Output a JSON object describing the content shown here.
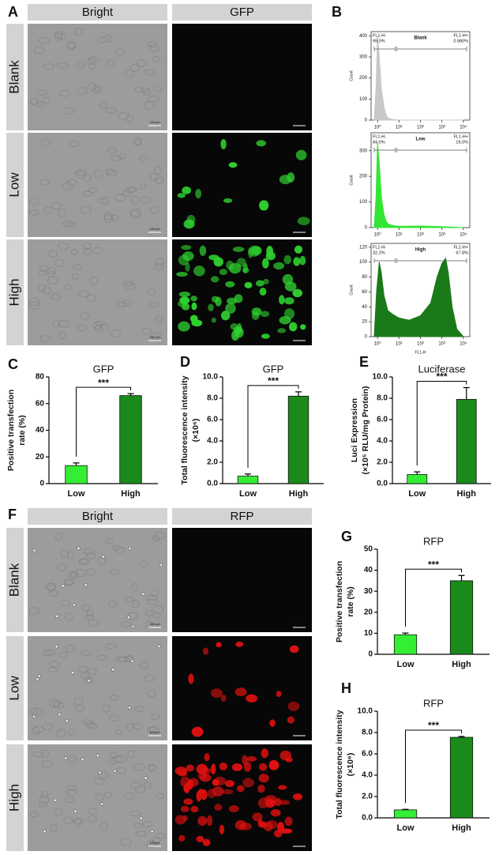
{
  "micrographs": [
    {
      "label": "A",
      "columns": [
        "Bright",
        "GFP"
      ],
      "rows": [
        "Blank",
        "Low",
        "High"
      ],
      "scale_bar": "100 μm"
    },
    {
      "label": "F",
      "columns": [
        "Bright",
        "RFP"
      ],
      "rows": [
        "Blank",
        "Low",
        "High"
      ],
      "scale_bar": "100 μm"
    }
  ],
  "chart_data": [
    {
      "type": "area",
      "panel": "B",
      "sample": "Blank",
      "color": "#c8c8c8",
      "log_x": true,
      "gate_minus": [
        "FL1-H-",
        "99.0%"
      ],
      "gate_plus": [
        "FL1-H+",
        "0.980%"
      ],
      "ylabel": "Count",
      "x": [
        0.7,
        0.85,
        1,
        1.2,
        1.5,
        2,
        2.5,
        3,
        5,
        10,
        100,
        1000,
        10000
      ],
      "values": [
        0,
        150,
        400,
        300,
        150,
        60,
        25,
        10,
        3,
        0,
        0,
        0,
        0
      ],
      "xlim": [
        0.5,
        20000
      ],
      "ylim": [
        0,
        420
      ],
      "yticks": [
        0,
        100,
        200,
        300,
        400
      ],
      "xticks": [
        {
          "value": 1,
          "label": "10⁰"
        },
        {
          "value": 10,
          "label": "10¹"
        },
        {
          "value": 100,
          "label": "10²"
        },
        {
          "value": 1000,
          "label": "10³"
        },
        {
          "value": 10000,
          "label": "10⁴"
        }
      ]
    },
    {
      "type": "area",
      "sample": "Low",
      "color": "#33e633",
      "log_x": true,
      "gate_minus": [
        "FL1-H-",
        "84.0%"
      ],
      "gate_plus": [
        "FL1-H+",
        "16.0%"
      ],
      "ylabel": "Count",
      "x": [
        0.7,
        0.85,
        1,
        1.2,
        1.5,
        2,
        2.5,
        3,
        5,
        10,
        100,
        1000,
        10000
      ],
      "values": [
        0,
        120,
        330,
        250,
        120,
        50,
        25,
        15,
        8,
        5,
        6,
        4,
        0
      ],
      "xlim": [
        0.5,
        20000
      ],
      "ylim": [
        0,
        370
      ],
      "yticks": [
        0,
        100,
        200,
        300
      ],
      "xticks": [
        {
          "value": 1,
          "label": "10⁰"
        },
        {
          "value": 10,
          "label": "10¹"
        },
        {
          "value": 100,
          "label": "10²"
        },
        {
          "value": 1000,
          "label": "10³"
        },
        {
          "value": 10000,
          "label": "10⁴"
        }
      ]
    },
    {
      "type": "area",
      "sample": "High",
      "color": "#1a7a1a",
      "log_x": true,
      "gate_minus": [
        "FL1-H-",
        "32.2%"
      ],
      "gate_plus": [
        "FL1-H+",
        "67.8%"
      ],
      "ylabel": "Count",
      "xlabel": "FL1-H",
      "x": [
        0.7,
        0.9,
        1.2,
        1.5,
        2,
        3,
        5,
        10,
        30,
        100,
        300,
        600,
        1000,
        1500,
        2000,
        3000,
        5000,
        10000
      ],
      "values": [
        0,
        60,
        100,
        85,
        55,
        35,
        30,
        25,
        22,
        28,
        45,
        80,
        98,
        105,
        85,
        40,
        10,
        0
      ],
      "xlim": [
        0.5,
        20000
      ],
      "ylim": [
        0,
        125
      ],
      "yticks": [
        0,
        20,
        40,
        60,
        80,
        100,
        120
      ],
      "xticks": [
        {
          "value": 1,
          "label": "10⁰"
        },
        {
          "value": 10,
          "label": "10¹"
        },
        {
          "value": 100,
          "label": "10²"
        },
        {
          "value": 1000,
          "label": "10³"
        },
        {
          "value": 10000,
          "label": "10⁴"
        }
      ]
    },
    {
      "type": "bar",
      "panel": "C",
      "title": "GFP",
      "ylabel": [
        "Positive transfection",
        "rate (%)"
      ],
      "categories": [
        "Low",
        "High"
      ],
      "values": [
        13.5,
        66
      ],
      "errors": [
        2,
        1.5
      ],
      "colors": [
        "#33ee33",
        "#1a8a1a"
      ],
      "significance": "***",
      "ylim": [
        0,
        80
      ],
      "yticks": [
        0,
        20,
        40,
        60,
        80
      ]
    },
    {
      "type": "bar",
      "panel": "D",
      "title": "GFP",
      "ylabel": [
        "Total fluorescence intensity",
        "(×10⁶)"
      ],
      "categories": [
        "Low",
        "High"
      ],
      "values": [
        0.7,
        8.2
      ],
      "errors": [
        0.2,
        0.4
      ],
      "colors": [
        "#33ee33",
        "#1a8a1a"
      ],
      "significance": "***",
      "ylim": [
        0,
        10
      ],
      "yticks": [
        {
          "value": 0,
          "label": "0.0"
        },
        {
          "value": 2,
          "label": "2.0"
        },
        {
          "value": 4,
          "label": "4.0"
        },
        {
          "value": 6,
          "label": "6.0"
        },
        {
          "value": 8,
          "label": "8.0"
        },
        {
          "value": 10,
          "label": "10.0"
        }
      ]
    },
    {
      "type": "bar",
      "panel": "E",
      "title": "Luciferase",
      "ylabel": [
        "Luci Expression",
        "(×10⁵ RLU/mg Protein)"
      ],
      "categories": [
        "Low",
        "High"
      ],
      "values": [
        0.85,
        7.9
      ],
      "errors": [
        0.25,
        1.1
      ],
      "colors": [
        "#33ee33",
        "#1a8a1a"
      ],
      "significance": "***",
      "ylim": [
        0,
        10
      ],
      "yticks": [
        {
          "value": 0,
          "label": "0.0"
        },
        {
          "value": 2,
          "label": "2.0"
        },
        {
          "value": 4,
          "label": "4.0"
        },
        {
          "value": 6,
          "label": "6.0"
        },
        {
          "value": 8,
          "label": "8.0"
        },
        {
          "value": 10,
          "label": "10.0"
        }
      ]
    },
    {
      "type": "bar",
      "panel": "G",
      "title": "RFP",
      "ylabel": [
        "Positive transfection",
        "rate (%)"
      ],
      "categories": [
        "Low",
        "High"
      ],
      "values": [
        9.3,
        35
      ],
      "errors": [
        0.8,
        2.5
      ],
      "colors": [
        "#33ee33",
        "#1a8a1a"
      ],
      "significance": "***",
      "ylim": [
        0,
        50
      ],
      "yticks": [
        0,
        10,
        20,
        30,
        40,
        50
      ]
    },
    {
      "type": "bar",
      "panel": "H",
      "title": "RFP",
      "ylabel": [
        "Total fluorescence intensity",
        "(×10⁶)"
      ],
      "categories": [
        "Low",
        "High"
      ],
      "values": [
        0.75,
        7.55
      ],
      "errors": [
        0.05,
        0.08
      ],
      "colors": [
        "#33ee33",
        "#1a8a1a"
      ],
      "significance": "***",
      "ylim": [
        0,
        10
      ],
      "yticks": [
        {
          "value": 0,
          "label": "0.0"
        },
        {
          "value": 2,
          "label": "2.0"
        },
        {
          "value": 4,
          "label": "4.0"
        },
        {
          "value": 6,
          "label": "6.0"
        },
        {
          "value": 8,
          "label": "8.0"
        },
        {
          "value": 10,
          "label": "10.0"
        }
      ]
    }
  ]
}
